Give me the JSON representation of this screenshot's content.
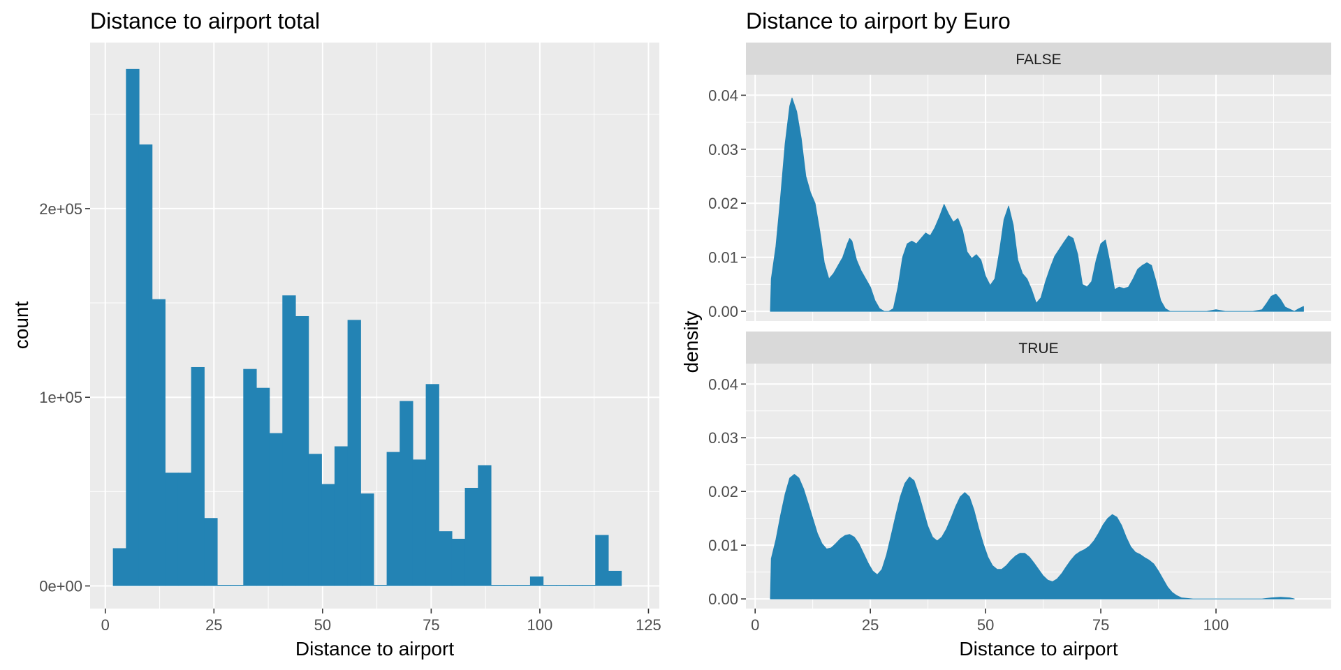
{
  "fill_color": "#2383b4",
  "panel_color": "#ebebeb",
  "strip_color": "#d9d9d9",
  "chart_data": [
    {
      "type": "bar",
      "title": "Distance to airport total",
      "xlabel": "Distance to airport",
      "ylabel": "count",
      "xlim": [
        -3.5,
        127.5
      ],
      "ylim": [
        -12000,
        288000
      ],
      "x_ticks": [
        0,
        25,
        50,
        75,
        100,
        125
      ],
      "y_ticks": [
        0,
        100000,
        200000
      ],
      "y_tick_labels": [
        "0e+00",
        "1e+05",
        "2e+05"
      ],
      "bin_width": 3,
      "bin_start": 1.75,
      "values": [
        20000,
        274000,
        234000,
        152000,
        60000,
        60000,
        116000,
        36000,
        0,
        0,
        115000,
        105000,
        81000,
        154000,
        143000,
        70000,
        54000,
        74000,
        141000,
        49000,
        0,
        71000,
        98000,
        67000,
        107000,
        29000,
        25000,
        52000,
        64000,
        0,
        0,
        0,
        5000,
        0,
        0,
        0,
        0,
        27000,
        8000
      ]
    },
    {
      "type": "area",
      "title": "Distance to airport by Euro",
      "xlabel": "Distance to airport",
      "ylabel": "density",
      "xlim": [
        -2,
        125
      ],
      "ylim": [
        -0.0018,
        0.0438
      ],
      "x_ticks": [
        0,
        25,
        50,
        75,
        100
      ],
      "y_ticks": [
        0,
        0.01,
        0.02,
        0.03,
        0.04
      ],
      "y_tick_labels": [
        "0.00",
        "0.01",
        "0.02",
        "0.03",
        "0.04"
      ],
      "facets": [
        {
          "label": "FALSE",
          "x": [
            3.3,
            3.5,
            4.5,
            5.5,
            6.5,
            7.5,
            8,
            9,
            10,
            11,
            12,
            13,
            14,
            15,
            16,
            17,
            18,
            19,
            20,
            20.5,
            21,
            22,
            23,
            24,
            25,
            26,
            27,
            28,
            29,
            30,
            31,
            32,
            33,
            34,
            35,
            36,
            37,
            38,
            39,
            40,
            41,
            42,
            43,
            44,
            45,
            46,
            47,
            48,
            49,
            50,
            51,
            52,
            53,
            54,
            55,
            56,
            57,
            58,
            59,
            60,
            61,
            62,
            63,
            64,
            65,
            66,
            67,
            68,
            69,
            70,
            71,
            72,
            73,
            74,
            75,
            76,
            77,
            78,
            79,
            80,
            81,
            82,
            83,
            84,
            85,
            86,
            87,
            88,
            89,
            90,
            95,
            98,
            100,
            102,
            105,
            108,
            110,
            111,
            112,
            113,
            114,
            115,
            117,
            118,
            119
          ],
          "y": [
            0,
            0.006,
            0.012,
            0.021,
            0.031,
            0.038,
            0.0395,
            0.037,
            0.032,
            0.025,
            0.022,
            0.02,
            0.015,
            0.009,
            0.006,
            0.007,
            0.0085,
            0.01,
            0.0125,
            0.0135,
            0.013,
            0.0095,
            0.0075,
            0.006,
            0.0045,
            0.002,
            0.0005,
            0,
            0,
            0.0005,
            0.0045,
            0.01,
            0.0125,
            0.013,
            0.0125,
            0.0135,
            0.0145,
            0.014,
            0.0155,
            0.0175,
            0.0198,
            0.018,
            0.0165,
            0.0172,
            0.015,
            0.011,
            0.0098,
            0.0105,
            0.0095,
            0.0065,
            0.0048,
            0.006,
            0.011,
            0.017,
            0.0195,
            0.016,
            0.0095,
            0.007,
            0.006,
            0.004,
            0.0015,
            0.0025,
            0.0055,
            0.008,
            0.0102,
            0.0115,
            0.0128,
            0.014,
            0.0135,
            0.0105,
            0.005,
            0.0045,
            0.0055,
            0.0095,
            0.0125,
            0.0132,
            0.009,
            0.004,
            0.0045,
            0.0042,
            0.0045,
            0.006,
            0.0078,
            0.0085,
            0.009,
            0.0085,
            0.0055,
            0.002,
            0.0005,
            0,
            0,
            0,
            0.0003,
            0,
            0,
            0,
            0.0003,
            0.0015,
            0.0028,
            0.0032,
            0.0022,
            0.0008,
            0,
            0.0005,
            0.0009
          ],
          "note_x_end": 119
        },
        {
          "label": "TRUE",
          "x": [
            3.3,
            3.5,
            4.5,
            5.5,
            6.5,
            7.5,
            8.5,
            9.5,
            10.5,
            11.5,
            12.5,
            13.5,
            14.5,
            15.5,
            16.5,
            17.5,
            18.5,
            19.5,
            20.5,
            21.5,
            22.5,
            23.5,
            24.5,
            25.5,
            26.5,
            27.5,
            28.5,
            29.5,
            30.5,
            31.5,
            32.5,
            33.5,
            34.5,
            35.5,
            36.5,
            37.5,
            38.5,
            39.5,
            40.5,
            41.5,
            42.5,
            43.5,
            44.5,
            45.5,
            46.5,
            47.5,
            48.5,
            49.5,
            50.5,
            51.5,
            52.5,
            53.5,
            54.5,
            55.5,
            56.5,
            57.5,
            58.5,
            59.5,
            60.5,
            61.5,
            62.5,
            63.5,
            64.5,
            65.5,
            66.5,
            67.5,
            68.5,
            69.5,
            70.5,
            71.5,
            72.5,
            73.5,
            74.5,
            75.5,
            76.5,
            77.5,
            78.5,
            79.5,
            80.5,
            81.5,
            82.5,
            83.5,
            84.5,
            85.5,
            86.5,
            87.5,
            88.5,
            89.5,
            90.5,
            91.5,
            92.5,
            95,
            100,
            105,
            108,
            110,
            112,
            114,
            116,
            117
          ],
          "y": [
            0,
            0.0075,
            0.011,
            0.0155,
            0.0195,
            0.0225,
            0.0232,
            0.0225,
            0.0205,
            0.0178,
            0.015,
            0.0122,
            0.0103,
            0.0093,
            0.0095,
            0.0103,
            0.0112,
            0.0118,
            0.012,
            0.0115,
            0.0103,
            0.0085,
            0.0067,
            0.0052,
            0.0045,
            0.0055,
            0.0082,
            0.0118,
            0.0155,
            0.019,
            0.0215,
            0.0227,
            0.022,
            0.0195,
            0.0165,
            0.0135,
            0.0115,
            0.0108,
            0.0115,
            0.013,
            0.015,
            0.0172,
            0.019,
            0.0198,
            0.019,
            0.0165,
            0.0132,
            0.0103,
            0.0078,
            0.0062,
            0.0055,
            0.0055,
            0.0062,
            0.0072,
            0.008,
            0.0085,
            0.0085,
            0.0078,
            0.0067,
            0.0055,
            0.0043,
            0.0035,
            0.0032,
            0.0037,
            0.0047,
            0.006,
            0.0072,
            0.0082,
            0.0088,
            0.0092,
            0.0098,
            0.0108,
            0.0122,
            0.0138,
            0.015,
            0.0157,
            0.0152,
            0.0137,
            0.0115,
            0.0097,
            0.0087,
            0.0083,
            0.0077,
            0.0072,
            0.0065,
            0.0052,
            0.0037,
            0.0022,
            0.0012,
            0.0006,
            0.0002,
            0,
            0,
            0,
            0,
            0,
            0.0002,
            0.0003,
            0.0002,
            0
          ]
        }
      ]
    }
  ]
}
